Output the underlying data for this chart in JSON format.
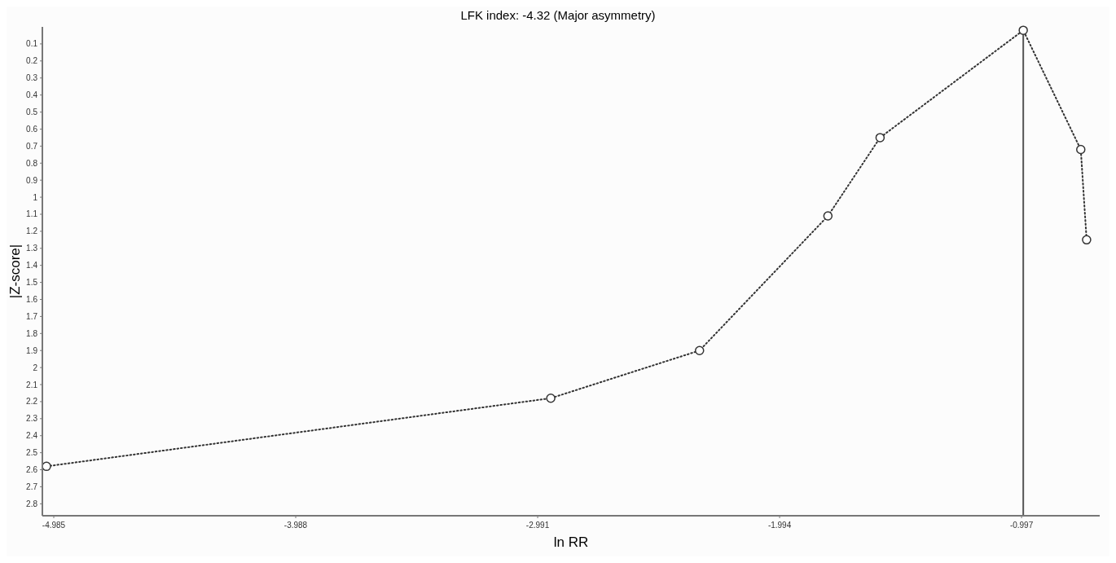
{
  "chart_data": {
    "type": "line",
    "title": "LFK index: -4.32 (Major asymmetry)",
    "xlabel": "ln RR",
    "ylabel": "|Z-score|",
    "x": [
      -5.015,
      -2.937,
      -2.324,
      -1.795,
      -1.58,
      -0.99,
      -0.753,
      -0.729
    ],
    "series": [
      {
        "color": "#333333",
        "values": [
          2.58,
          2.18,
          1.9,
          1.11,
          0.65,
          0.02,
          0.72,
          1.25
        ]
      }
    ],
    "xlim": [
      -5.032,
      -0.675
    ],
    "xticks": [
      -4.985,
      -3.988,
      -2.991,
      -1.994,
      -0.997
    ],
    "ylim": [
      2.87,
      0
    ],
    "yticks": [
      0.1,
      0.2,
      0.3,
      0.4,
      0.5,
      0.6,
      0.7,
      0.8,
      0.9,
      1,
      1.1,
      1.2,
      1.3,
      1.4,
      1.5,
      1.6,
      1.7,
      1.8,
      1.9,
      2,
      2.1,
      2.2,
      2.3,
      2.4,
      2.5,
      2.6,
      2.7,
      2.8
    ],
    "ref_lines": [
      {
        "axis": "x",
        "value": -0.99,
        "color": "#555555",
        "line_style": "solid"
      }
    ],
    "marker": "circle",
    "line_style": "dotted",
    "grid": false
  }
}
